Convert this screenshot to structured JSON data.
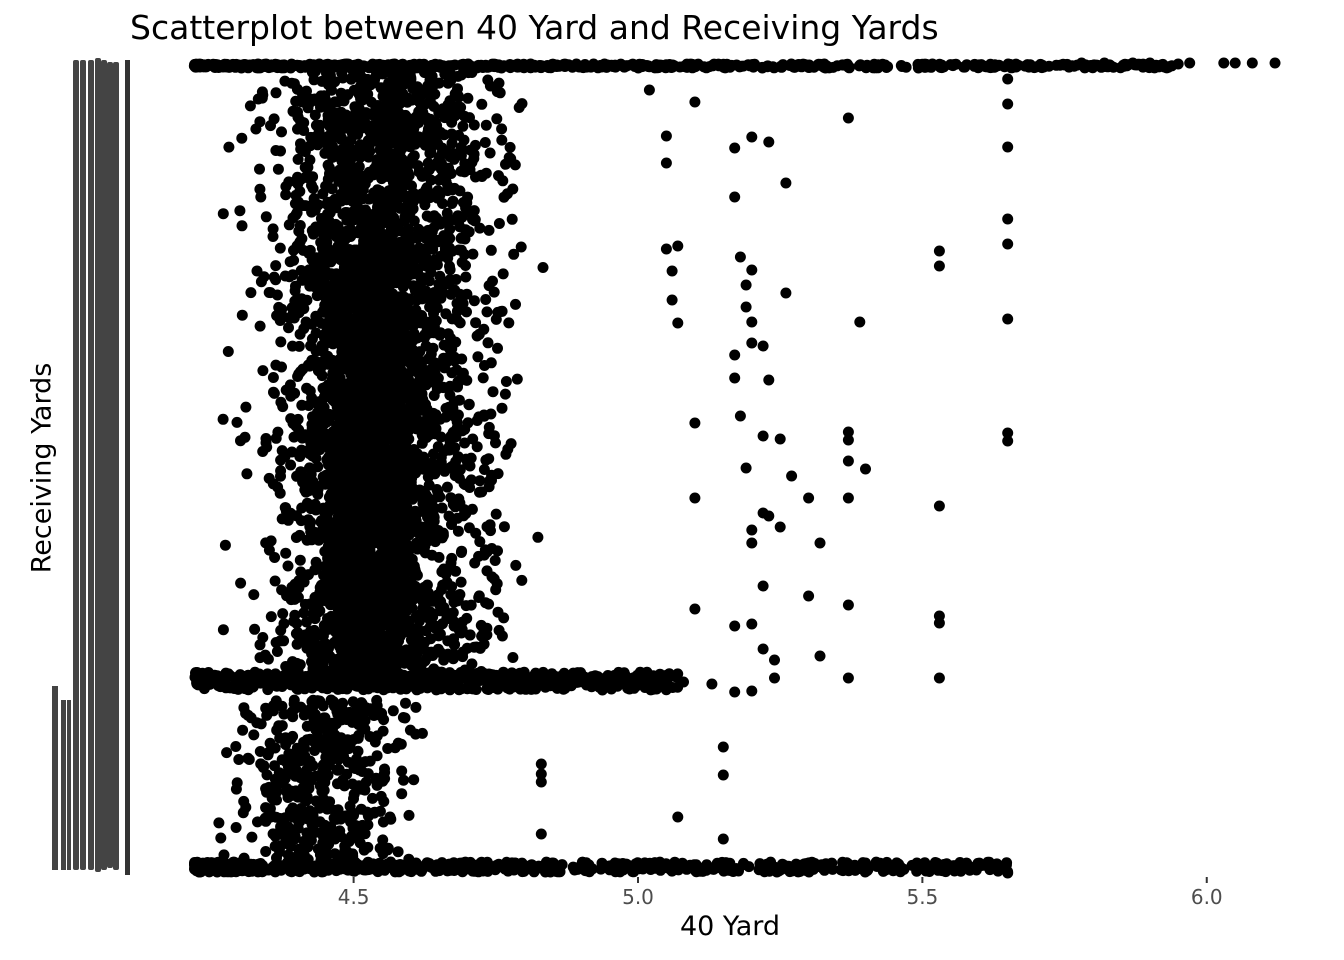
{
  "chart_data": {
    "type": "scatter",
    "title": "Scatterplot between 40 Yard and Receiving Yards",
    "xlabel": "40 Yard",
    "ylabel": "Receiving Yards",
    "xlim": [
      4.2,
      6.12
    ],
    "x_ticks": [
      "4.5",
      "5.0",
      "5.5",
      "6.0"
    ],
    "y_axis": "categorical (overlapping, illegible tick labels)",
    "grid": false,
    "legend": "none",
    "point_color": "#000000",
    "clusters": [
      {
        "x_range": [
          4.22,
          6.12
        ],
        "y_band": "top",
        "density": "very high"
      },
      {
        "x_range": [
          4.25,
          5.1
        ],
        "y_band": "upper-middle",
        "density": "high"
      },
      {
        "x_range": [
          4.25,
          4.75
        ],
        "y_band": "lower",
        "density": "medium"
      },
      {
        "x_range": [
          4.22,
          5.65
        ],
        "y_band": "bottom",
        "density": "high"
      }
    ],
    "outliers": [
      {
        "x": 5.65,
        "y_band": "top-to-middle"
      },
      {
        "x": 5.53,
        "y_band": "middle"
      },
      {
        "x": 5.37,
        "y_band": "middle"
      },
      {
        "x": 5.4,
        "y_band": "middle"
      }
    ]
  }
}
